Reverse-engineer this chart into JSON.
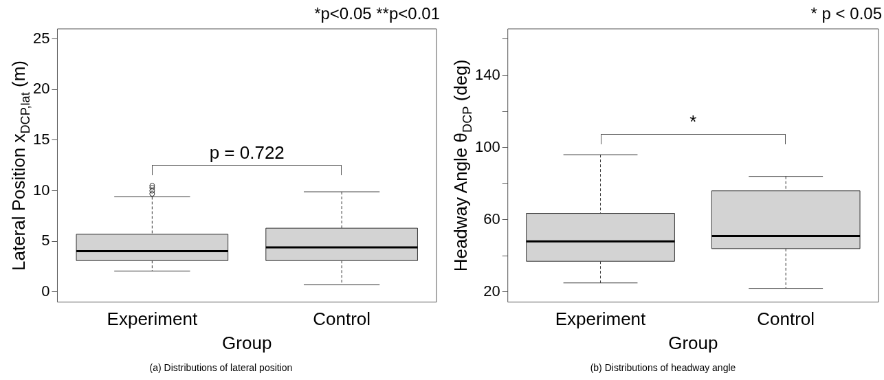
{
  "chart_data": [
    {
      "type": "box",
      "xlabel": "Group",
      "ylabel": "Lateral Position x$_{DCP,lat}$ (m)",
      "categories": [
        "Experiment",
        "Control"
      ],
      "color": "#d3d3d3",
      "boxes": [
        {
          "low": 2.07,
          "q1": 3.1,
          "median": 4.03,
          "q3": 5.7,
          "high": 9.4,
          "outliers": [
            9.7,
            10.0,
            10.3,
            10.5
          ]
        },
        {
          "low": 0.7,
          "q1": 3.1,
          "median": 4.4,
          "q3": 6.3,
          "high": 9.9
        }
      ],
      "ylim": [
        -1,
        26
      ],
      "yticks": [
        0,
        5,
        10,
        15,
        20,
        25
      ],
      "grid": false,
      "legend": false,
      "annotations": [
        "*p<0.05 **p<0.01",
        "p =  0.722",
        "(a) Distributions of lateral position"
      ]
    },
    {
      "type": "box",
      "xlabel": "Group",
      "ylabel": "Headway Angle θ$_{DCP}$ (deg)",
      "categories": [
        "Experiment",
        "Control"
      ],
      "color": "#d3d3d3",
      "boxes": [
        {
          "low": 25,
          "q1": 37,
          "median": 48,
          "q3": 63.5,
          "high": 96
        },
        {
          "low": 22,
          "q1": 44,
          "median": 51,
          "q3": 76,
          "high": 84
        }
      ],
      "ylim": [
        14.4,
        165.7
      ],
      "yticks": [
        20,
        {
          "value": 40,
          "label": null
        },
        60,
        {
          "value": 80,
          "label": null
        },
        100,
        {
          "value": 120,
          "label": null
        },
        140,
        {
          "value": 160,
          "label": null
        }
      ],
      "grid": false,
      "legend": false,
      "annotations": [
        "* p < 0.05",
        "*",
        "(b) Distributions of headway angle"
      ]
    }
  ]
}
